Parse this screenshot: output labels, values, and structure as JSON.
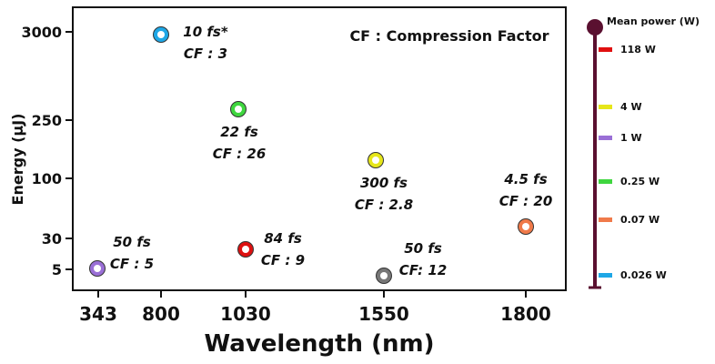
{
  "chart_data": {
    "type": "scatter",
    "xlabel": "Wavelength (nm)",
    "ylabel": "Energy (µJ)",
    "x_ticks": [
      "343",
      "800",
      "1030",
      "1550",
      "1800"
    ],
    "y_ticks": [
      "5",
      "30",
      "100",
      "250",
      "3000"
    ],
    "legend_note": "CF : Compression Factor",
    "points": [
      {
        "x": 343,
        "y": 5,
        "color": "#9a6fd6",
        "labels": [
          "50 fs",
          "CF : 5"
        ]
      },
      {
        "x": 800,
        "y": 3000,
        "color": "#1ea7e6",
        "labels": [
          "10 fs*",
          "CF : 3"
        ]
      },
      {
        "x": 1030,
        "y": 250,
        "color": "#3fd63f",
        "labels": [
          "22 fs",
          "CF : 26"
        ]
      },
      {
        "x": 1030,
        "y": 30,
        "color": "#dd1111",
        "labels": [
          "84 fs",
          "CF : 9"
        ]
      },
      {
        "x": 1550,
        "y": 100,
        "color": "#e6e61a",
        "labels": [
          "300 fs",
          "CF : 2.8"
        ]
      },
      {
        "x": 1550,
        "y": 5,
        "color": "#777777",
        "labels": [
          "50 fs",
          "CF: 12"
        ]
      },
      {
        "x": 1800,
        "y": 30,
        "color": "#f07a4a",
        "labels": [
          "4.5 fs",
          "CF : 20"
        ]
      }
    ],
    "colorbar": {
      "title": "Mean power (W)",
      "entries": [
        {
          "label": "118 W",
          "color": "#e01010"
        },
        {
          "label": "4 W",
          "color": "#e6e61a"
        },
        {
          "label": "1 W",
          "color": "#9a6fd6"
        },
        {
          "label": "0.25 W",
          "color": "#3fd63f"
        },
        {
          "label": "0.07 W",
          "color": "#f07a4a"
        },
        {
          "label": "0.026 W",
          "color": "#1ea7e6"
        }
      ]
    }
  }
}
